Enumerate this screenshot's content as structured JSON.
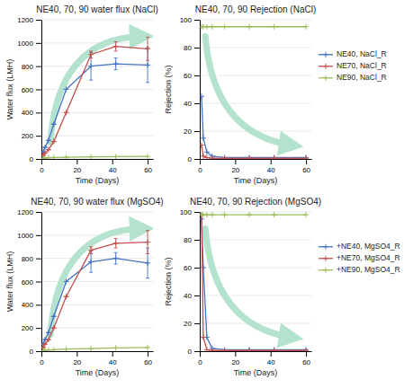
{
  "chart_data": [
    {
      "type": "line",
      "title": "NE40, 70, 90 water flux (NaCl)",
      "x_label": "Time (Days)",
      "y_label": "Water flux (LMH)",
      "x": [
        1,
        2,
        4,
        7,
        14,
        28,
        42,
        60
      ],
      "xlim": [
        0,
        63
      ],
      "xticks": [
        0,
        20,
        40,
        60
      ],
      "ylim": [
        0,
        1200
      ],
      "yticks": [
        0,
        200,
        400,
        600,
        800,
        1000,
        1200
      ],
      "grid": true,
      "marker": "plus",
      "series": [
        {
          "color": "#4472c4",
          "values": [
            60,
            100,
            160,
            300,
            600,
            800,
            820,
            810
          ],
          "errors": [
            0,
            0,
            0,
            0,
            0,
            120,
            50,
            150
          ]
        },
        {
          "color": "#c0504d",
          "values": [
            30,
            50,
            80,
            150,
            400,
            900,
            970,
            950
          ],
          "errors": [
            0,
            0,
            0,
            0,
            0,
            30,
            40,
            100
          ]
        },
        {
          "color": "#9bbb59",
          "values": [
            5,
            8,
            10,
            12,
            15,
            18,
            20,
            22
          ]
        }
      ]
    },
    {
      "type": "line",
      "title": "NE40, 70, 90 Rejection (NaCl)",
      "x_label": "Time (Days)",
      "y_label": "Rejection (%)",
      "x": [
        1,
        2,
        4,
        7,
        14,
        28,
        42,
        60
      ],
      "xlim": [
        0,
        63
      ],
      "xticks": [
        0,
        20,
        40,
        60
      ],
      "ylim": [
        0,
        100
      ],
      "yticks": [
        0,
        20,
        40,
        60,
        80,
        100
      ],
      "grid": true,
      "marker": "plus",
      "legend": "right",
      "series": [
        {
          "name": "NE40, NaCl_R",
          "color": "#4472c4",
          "values": [
            45,
            15,
            5,
            2,
            1,
            1,
            1,
            1
          ]
        },
        {
          "name": "NE70, NaCl_R",
          "color": "#c0504d",
          "values": [
            10,
            2,
            1,
            0.5,
            0.5,
            0.5,
            0.5,
            0.5
          ]
        },
        {
          "name": "NE90, NaCl_R",
          "color": "#9bbb59",
          "values": [
            95,
            95,
            95,
            95,
            95,
            95,
            95,
            95
          ]
        }
      ]
    },
    {
      "type": "line",
      "title": "NE40, 70, 90 water flux (MgSO4)",
      "x_label": "Time (Days)",
      "y_label": "Water flux (LMH)",
      "x": [
        1,
        2,
        4,
        7,
        14,
        28,
        42,
        60
      ],
      "xlim": [
        0,
        63
      ],
      "xticks": [
        0,
        20,
        40,
        60
      ],
      "ylim": [
        0,
        1200
      ],
      "yticks": [
        0,
        200,
        400,
        600,
        800,
        1000,
        1200
      ],
      "grid": true,
      "marker": "plus",
      "series": [
        {
          "color": "#4472c4",
          "values": [
            60,
            100,
            160,
            300,
            600,
            770,
            800,
            760
          ],
          "errors": [
            0,
            0,
            0,
            0,
            0,
            90,
            50,
            130
          ]
        },
        {
          "color": "#c0504d",
          "values": [
            30,
            60,
            100,
            200,
            470,
            870,
            930,
            940
          ],
          "errors": [
            0,
            0,
            0,
            0,
            0,
            30,
            40,
            100
          ]
        },
        {
          "color": "#9bbb59",
          "values": [
            5,
            8,
            10,
            12,
            18,
            22,
            28,
            32
          ]
        }
      ]
    },
    {
      "type": "line",
      "title": "NE40, 70, 90 Rejection (MgSO4)",
      "x_label": "Time (Days)",
      "y_label": "Rejection (%)",
      "x": [
        1,
        2,
        4,
        7,
        14,
        28,
        42,
        60
      ],
      "xlim": [
        0,
        63
      ],
      "xticks": [
        0,
        20,
        40,
        60
      ],
      "ylim": [
        0,
        100
      ],
      "yticks": [
        0,
        20,
        40,
        60,
        80,
        100
      ],
      "grid": true,
      "marker": "plus",
      "legend": "right",
      "series": [
        {
          "name": "+NE40, MgSO4_R",
          "color": "#4472c4",
          "values": [
            95,
            60,
            10,
            2,
            1,
            1,
            1,
            1
          ]
        },
        {
          "name": "+NE70, MgSO4_R",
          "color": "#c0504d",
          "values": [
            98,
            10,
            1,
            0.5,
            0.5,
            0.5,
            0.5,
            0.5
          ]
        },
        {
          "name": "+NE90, MgSO4_R",
          "color": "#9bbb59",
          "values": [
            98,
            98,
            98,
            98,
            98,
            98,
            98,
            98
          ]
        }
      ]
    }
  ]
}
